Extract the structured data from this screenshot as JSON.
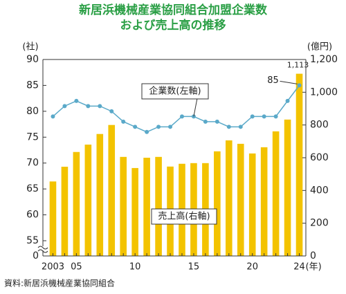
{
  "chart_data": {
    "type": "bar_line",
    "title": [
      "新居浜機械産業協同組合加盟企業数",
      "および売上高の推移"
    ],
    "ylabel": "(社)",
    "y2label": "(億円)",
    "xlabel": "(年)",
    "categories": [
      "2003",
      null,
      "05",
      null,
      null,
      null,
      null,
      "10",
      null,
      null,
      null,
      null,
      "15",
      null,
      null,
      null,
      null,
      "20",
      null,
      null,
      null,
      "24"
    ],
    "series": [
      {
        "name": "売上高(右軸)",
        "type": "bar",
        "axis": "y2",
        "color": "#f3c300",
        "values": [
          455,
          545,
          635,
          680,
          745,
          800,
          605,
          537,
          600,
          605,
          546,
          563,
          567,
          567,
          639,
          706,
          685,
          626,
          664,
          761,
          833,
          1113
        ],
        "value_labels": [
          null,
          null,
          null,
          null,
          null,
          null,
          null,
          null,
          null,
          null,
          null,
          null,
          null,
          null,
          null,
          null,
          null,
          null,
          null,
          null,
          null,
          "1,113"
        ]
      },
      {
        "name": "企業数(左軸)",
        "type": "line",
        "axis": "y",
        "color": "#5aa9c9",
        "values": [
          79,
          81,
          82,
          81,
          81,
          80,
          78,
          77,
          76,
          77,
          77,
          79,
          79,
          78,
          78,
          77,
          77,
          79,
          79,
          79,
          82,
          85
        ]
      }
    ],
    "ylim": [
      0,
      90
    ],
    "ybreak": [
      0,
      55
    ],
    "yticks": [
      0,
      55,
      60,
      65,
      70,
      75,
      80,
      85,
      90
    ],
    "y2lim": [
      0,
      1200
    ],
    "y2ticks": [
      0,
      200,
      400,
      600,
      800,
      {
        "value": 1000,
        "label": "1,000"
      },
      {
        "value": 1200,
        "label": "1,200"
      }
    ],
    "source": "資料:新居浜機械産業協同組合"
  }
}
